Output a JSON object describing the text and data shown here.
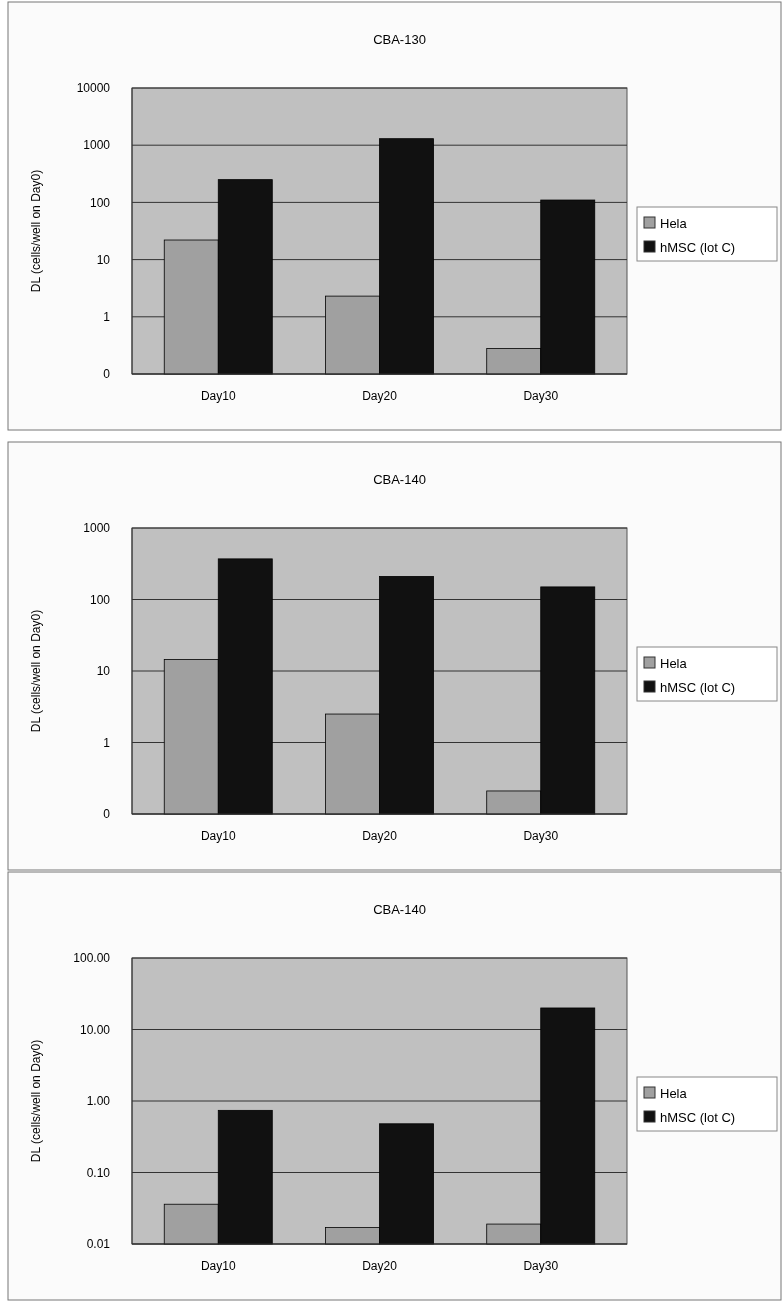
{
  "chart_data": [
    {
      "type": "bar",
      "title": "CBA-130",
      "ylabel": "DL (cells/well on Day0)",
      "categories": [
        "Day10",
        "Day20",
        "Day30"
      ],
      "log": true,
      "ylim": [
        0.1,
        10000
      ],
      "yticks": [
        {
          "value": 0.1,
          "label": "0"
        },
        1,
        10,
        100,
        1000,
        10000
      ],
      "grid": "y",
      "legend": "right",
      "series": [
        {
          "name": "Hela",
          "color": "#a0a0a0",
          "values": [
            22,
            2.3,
            0.28
          ]
        },
        {
          "name": "hMSC (lot C)",
          "color": "#111111",
          "values": [
            250,
            1300,
            110
          ]
        }
      ]
    },
    {
      "type": "bar",
      "title": "CBA-140",
      "ylabel": "DL (cells/well on Day0)",
      "categories": [
        "Day10",
        "Day20",
        "Day30"
      ],
      "log": true,
      "ylim": [
        0.1,
        1000
      ],
      "yticks": [
        {
          "value": 0.1,
          "label": "0"
        },
        1,
        10,
        100,
        1000
      ],
      "grid": "y",
      "legend": "right",
      "series": [
        {
          "name": "Hela",
          "color": "#a0a0a0",
          "values": [
            14.5,
            2.5,
            0.21
          ]
        },
        {
          "name": "hMSC (lot C)",
          "color": "#111111",
          "values": [
            370,
            210,
            150
          ]
        }
      ]
    },
    {
      "type": "bar",
      "title": "CBA-140",
      "ylabel": "DL (cells/well on Day0)",
      "categories": [
        "Day10",
        "Day20",
        "Day30"
      ],
      "log": true,
      "ylim": [
        0.01,
        100
      ],
      "yticks": [
        {
          "value": 0.01,
          "label": "0.01"
        },
        {
          "value": 0.1,
          "label": "0.10"
        },
        {
          "value": 1,
          "label": "1.00"
        },
        {
          "value": 10,
          "label": "10.00"
        },
        {
          "value": 100,
          "label": "100.00"
        }
      ],
      "grid": "y",
      "legend": "right",
      "series": [
        {
          "name": "Hela",
          "color": "#a0a0a0",
          "values": [
            0.036,
            0.017,
            0.019
          ]
        },
        {
          "name": "hMSC (lot C)",
          "color": "#111111",
          "values": [
            0.74,
            0.48,
            20
          ]
        }
      ]
    }
  ]
}
